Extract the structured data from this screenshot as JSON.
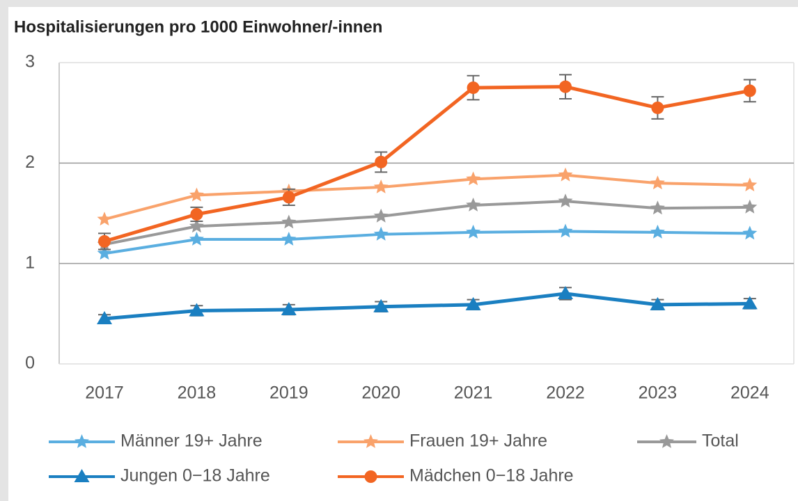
{
  "chart_data": {
    "type": "line",
    "title": "Hospitalisierungen pro 1000 Einwohner/-innen",
    "categories": [
      "2017",
      "2018",
      "2019",
      "2020",
      "2021",
      "2022",
      "2023",
      "2024"
    ],
    "ylim": [
      0,
      3
    ],
    "yticks": [
      0,
      1,
      2,
      3
    ],
    "grid": true,
    "legend": "bottom",
    "series": [
      {
        "name": "Männer 19+ Jahre",
        "color": "#5aaee0",
        "marker": "star",
        "values": [
          1.1,
          1.24,
          1.24,
          1.29,
          1.31,
          1.32,
          1.31,
          1.3
        ]
      },
      {
        "name": "Frauen 19+ Jahre",
        "color": "#f9a26b",
        "marker": "star",
        "values": [
          1.44,
          1.68,
          1.72,
          1.76,
          1.84,
          1.88,
          1.8,
          1.78
        ]
      },
      {
        "name": "Total",
        "color": "#999999",
        "marker": "star",
        "values": [
          1.19,
          1.37,
          1.41,
          1.47,
          1.58,
          1.62,
          1.55,
          1.56
        ]
      },
      {
        "name": "Jungen 0−18 Jahre",
        "color": "#1a7fc1",
        "marker": "triangle",
        "values": [
          0.45,
          0.53,
          0.54,
          0.57,
          0.59,
          0.7,
          0.59,
          0.6
        ],
        "errors": [
          0.04,
          0.05,
          0.05,
          0.05,
          0.05,
          0.06,
          0.05,
          0.05
        ]
      },
      {
        "name": "Mädchen 0−18 Jahre",
        "color": "#f26522",
        "marker": "circle",
        "values": [
          1.22,
          1.49,
          1.66,
          2.01,
          2.75,
          2.76,
          2.55,
          2.72
        ],
        "errors": [
          0.08,
          0.07,
          0.08,
          0.1,
          0.12,
          0.12,
          0.11,
          0.11
        ]
      }
    ]
  }
}
